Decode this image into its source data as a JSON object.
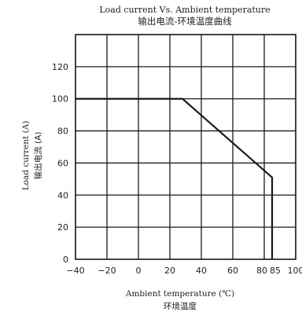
{
  "chart_data": {
    "type": "line",
    "title": "Load current Vs. Ambient temperature",
    "subtitle": "输出电流-环境温度曲线",
    "xlabel": "Ambient temperature (℃)",
    "xlabel_cn": "环境温度",
    "ylabel": "Load current (A)",
    "ylabel_cn": "输出电流 (A)",
    "xlim": [
      -40,
      100
    ],
    "ylim": [
      0,
      140
    ],
    "xticks": [
      -40,
      -20,
      0,
      20,
      40,
      60,
      80,
      85,
      100
    ],
    "xtick_labels": [
      "−40",
      "−20",
      "0",
      "20",
      "40",
      "60",
      "80",
      "85",
      "100"
    ],
    "yticks": [
      0,
      20,
      40,
      60,
      80,
      100,
      120
    ],
    "ytick_labels": [
      "0",
      "20",
      "40",
      "60",
      "80",
      "100",
      "120"
    ],
    "x_gridlines": [
      -40,
      -20,
      0,
      20,
      40,
      60,
      80,
      100
    ],
    "y_gridlines": [
      0,
      20,
      40,
      60,
      80,
      100,
      120,
      140
    ],
    "grid": true,
    "series": [
      {
        "x": [
          -40,
          28,
          85,
          85
        ],
        "y": [
          100,
          100,
          51,
          0
        ]
      }
    ],
    "colors": {
      "line": "#1a1a1a",
      "grid": "#1a1a1a",
      "text": "#222222"
    }
  }
}
